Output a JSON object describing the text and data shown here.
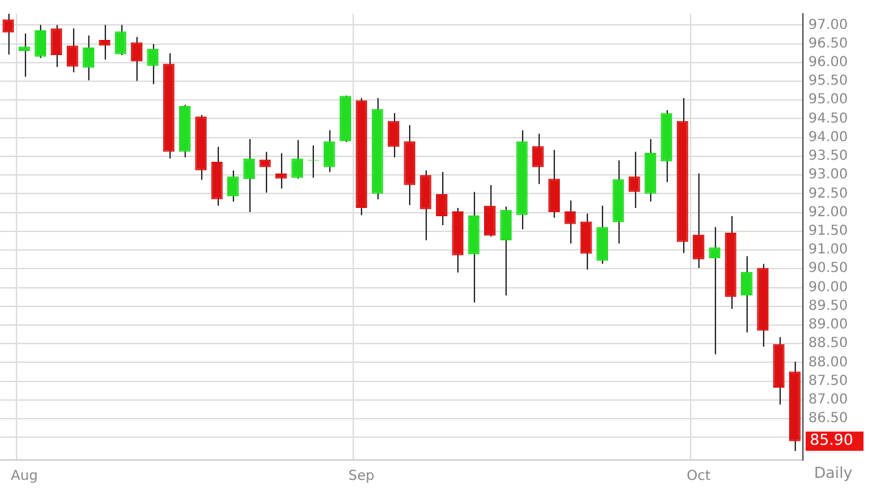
{
  "chart_data": {
    "type": "candlestick",
    "categories": [
      null,
      "Aug",
      null,
      null,
      null,
      null,
      null,
      null,
      null,
      null,
      null,
      null,
      null,
      null,
      null,
      null,
      null,
      null,
      null,
      null,
      null,
      null,
      "Sep",
      null,
      null,
      null,
      null,
      null,
      null,
      null,
      null,
      null,
      null,
      null,
      null,
      null,
      null,
      null,
      null,
      null,
      null,
      null,
      null,
      "Oct",
      null,
      null,
      null,
      null,
      null,
      null
    ],
    "ohlc": [
      [
        97.15,
        97.3,
        96.21,
        96.8
      ],
      [
        96.31,
        96.77,
        95.62,
        96.43
      ],
      [
        96.15,
        97.0,
        96.12,
        96.86
      ],
      [
        96.91,
        97.0,
        95.88,
        96.2
      ],
      [
        96.45,
        96.91,
        95.74,
        95.89
      ],
      [
        95.86,
        96.72,
        95.53,
        96.4
      ],
      [
        96.6,
        97.0,
        96.08,
        96.45
      ],
      [
        96.22,
        97.0,
        96.2,
        96.83
      ],
      [
        96.54,
        96.68,
        95.51,
        96.03
      ],
      [
        95.91,
        96.49,
        95.42,
        96.37
      ],
      [
        95.97,
        96.25,
        93.44,
        93.62
      ],
      [
        93.62,
        94.87,
        93.47,
        94.84
      ],
      [
        94.56,
        94.6,
        92.87,
        93.12
      ],
      [
        93.35,
        93.75,
        92.18,
        92.35
      ],
      [
        92.43,
        93.12,
        92.29,
        92.96
      ],
      [
        92.89,
        93.96,
        92.01,
        93.44
      ],
      [
        93.41,
        93.62,
        92.53,
        93.21
      ],
      [
        93.04,
        93.58,
        92.64,
        92.9
      ],
      [
        92.92,
        93.93,
        92.9,
        93.44
      ],
      [
        93.38,
        93.79,
        92.93,
        93.4
      ],
      [
        93.21,
        94.19,
        93.08,
        93.9
      ],
      [
        93.9,
        95.12,
        93.88,
        95.11
      ],
      [
        94.99,
        95.05,
        91.93,
        92.12
      ],
      [
        92.5,
        95.05,
        92.35,
        94.76
      ],
      [
        94.44,
        94.65,
        93.47,
        93.75
      ],
      [
        93.9,
        94.33,
        92.2,
        92.73
      ],
      [
        93.0,
        93.12,
        91.26,
        92.09
      ],
      [
        92.49,
        93.08,
        91.66,
        91.9
      ],
      [
        92.03,
        92.12,
        90.4,
        90.86
      ],
      [
        90.88,
        92.55,
        89.6,
        91.92
      ],
      [
        92.18,
        92.73,
        91.36,
        91.38
      ],
      [
        91.26,
        92.16,
        89.79,
        92.07
      ],
      [
        91.93,
        94.19,
        91.55,
        93.9
      ],
      [
        93.77,
        94.1,
        92.76,
        93.21
      ],
      [
        92.9,
        93.67,
        91.86,
        92.01
      ],
      [
        92.03,
        92.32,
        91.17,
        91.69
      ],
      [
        91.76,
        91.97,
        90.48,
        90.9
      ],
      [
        90.71,
        92.18,
        90.63,
        91.61
      ],
      [
        91.74,
        93.39,
        91.17,
        92.89
      ],
      [
        92.96,
        93.62,
        92.12,
        92.55
      ],
      [
        92.5,
        93.96,
        92.29,
        93.59
      ],
      [
        93.36,
        94.73,
        92.81,
        94.65
      ],
      [
        94.44,
        95.05,
        90.92,
        91.21
      ],
      [
        91.41,
        93.04,
        90.52,
        90.75
      ],
      [
        90.78,
        91.61,
        88.22,
        91.07
      ],
      [
        91.46,
        91.9,
        89.43,
        89.75
      ],
      [
        89.79,
        90.83,
        88.8,
        90.42
      ],
      [
        90.52,
        90.63,
        88.42,
        88.85
      ],
      [
        88.49,
        88.68,
        86.88,
        87.33
      ],
      [
        87.76,
        88.02,
        85.64,
        85.9
      ]
    ],
    "colors": [
      "#dd1111",
      "#22dd22",
      "#22dd22",
      "#dd1111",
      "#dd1111",
      "#22dd22",
      "#dd1111",
      "#22dd22",
      "#dd1111",
      "#22dd22",
      "#dd1111",
      "#22dd22",
      "#dd1111",
      "#dd1111",
      "#22dd22",
      "#22dd22",
      "#dd1111",
      "#dd1111",
      "#22dd22",
      "#22dd22",
      "#22dd22",
      "#22dd22",
      "#dd1111",
      "#22dd22",
      "#dd1111",
      "#dd1111",
      "#dd1111",
      "#dd1111",
      "#dd1111",
      "#22dd22",
      "#dd1111",
      "#22dd22",
      "#22dd22",
      "#dd1111",
      "#dd1111",
      "#dd1111",
      "#dd1111",
      "#22dd22",
      "#22dd22",
      "#dd1111",
      "#22dd22",
      "#22dd22",
      "#dd1111",
      "#dd1111",
      "#22dd22",
      "#dd1111",
      "#22dd22",
      "#dd1111",
      "#dd1111",
      "#dd1111"
    ],
    "ylim": [
      85.4,
      97.3
    ],
    "yticks": [
      {
        "value": 86,
        "label": null
      },
      {
        "value": 86.5,
        "label": "86.50"
      },
      {
        "value": 87,
        "label": "87.00"
      },
      {
        "value": 87.5,
        "label": "87.50"
      },
      {
        "value": 88,
        "label": "88.00"
      },
      {
        "value": 88.5,
        "label": "88.50"
      },
      {
        "value": 89,
        "label": "89.00"
      },
      {
        "value": 89.5,
        "label": "89.50"
      },
      {
        "value": 90,
        "label": "90.00"
      },
      {
        "value": 90.5,
        "label": "90.50"
      },
      {
        "value": 91,
        "label": "91.00"
      },
      {
        "value": 91.5,
        "label": "91.50"
      },
      {
        "value": 92,
        "label": "92.00"
      },
      {
        "value": 92.5,
        "label": "92.50"
      },
      {
        "value": 93,
        "label": "93.00"
      },
      {
        "value": 93.5,
        "label": "93.50"
      },
      {
        "value": 94,
        "label": "94.00"
      },
      {
        "value": 94.5,
        "label": "94.50"
      },
      {
        "value": 95,
        "label": "95.00"
      },
      {
        "value": 95.5,
        "label": "95.50"
      },
      {
        "value": 96,
        "label": "96.00"
      },
      {
        "value": 96.5,
        "label": "96.50"
      },
      {
        "value": 97,
        "label": "97.00"
      }
    ],
    "grid": true,
    "annotations": [
      "Daily",
      "85.90"
    ]
  }
}
